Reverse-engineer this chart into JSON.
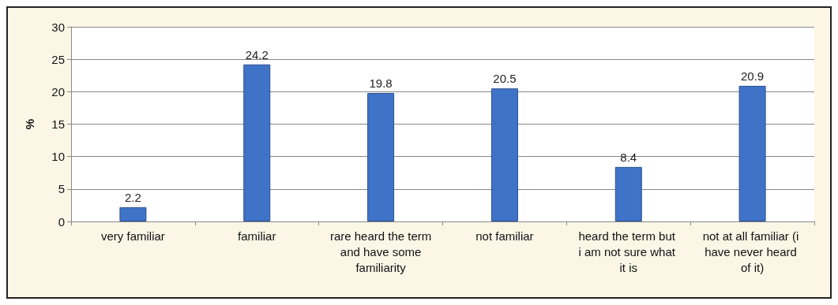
{
  "chart_data": {
    "type": "bar",
    "ylabel": "%",
    "categories": [
      "very familiar",
      "familiar",
      "rare heard the term and have some familiarity",
      "not familiar",
      "heard the term but i am not sure what it is",
      "not at all familiar (i have never heard of it)"
    ],
    "values": [
      2.2,
      24.2,
      19.8,
      20.5,
      8.4,
      20.9
    ],
    "color": "#3f73c8",
    "ylim": [
      0,
      30
    ],
    "yticks": [
      0,
      5,
      10,
      15,
      20,
      25,
      30
    ],
    "grid": "y",
    "data_labels": true
  }
}
